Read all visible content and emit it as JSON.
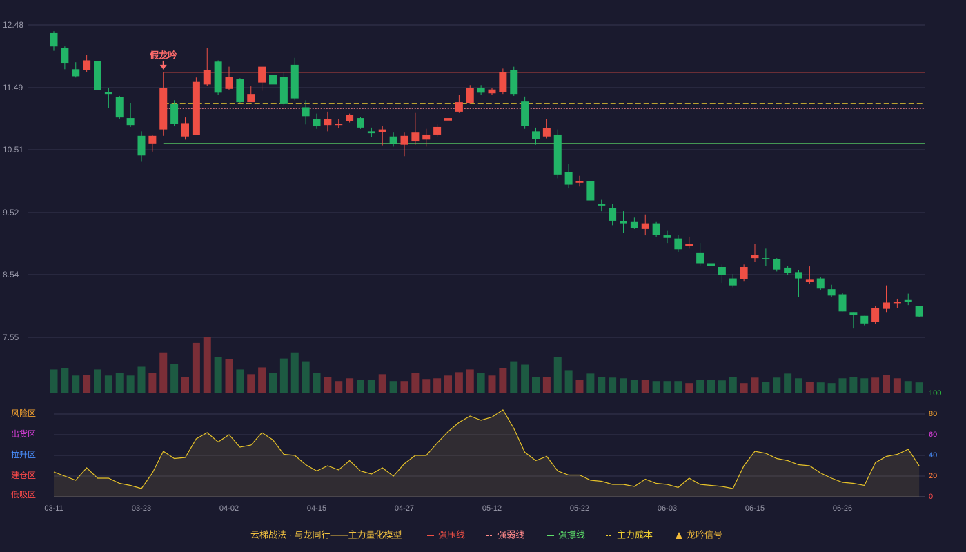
{
  "chart_data": [
    {
      "type": "candlestick",
      "open": [
        12.35,
        12.12,
        11.78,
        11.77,
        11.91,
        11.42,
        11.34,
        11.01,
        10.73,
        10.61,
        10.83,
        11.23,
        10.72,
        10.74,
        11.54,
        11.9,
        11.47,
        11.62,
        11.26,
        11.57,
        11.69,
        11.66,
        11.85,
        11.18,
        10.99,
        10.9,
        10.9,
        10.96,
        11.01,
        10.8,
        10.79,
        10.72,
        10.59,
        10.64,
        10.67,
        10.75,
        10.97,
        11.11,
        11.25,
        11.49,
        11.4,
        11.42,
        11.77,
        11.27,
        10.8,
        10.72,
        10.75,
        10.16,
        9.99,
        10.02,
        9.65,
        9.59,
        9.38,
        9.37,
        9.26,
        9.35,
        9.16,
        9.11,
        8.99,
        8.89,
        8.72,
        8.66,
        8.48,
        8.47,
        8.8,
        8.8,
        8.78,
        8.65,
        8.58,
        8.43,
        8.48,
        8.31,
        8.23,
        7.95,
        7.89,
        7.79,
        8.0,
        8.09,
        8.14,
        8.04
      ],
      "close": [
        12.14,
        11.87,
        11.67,
        11.92,
        11.45,
        11.39,
        11.02,
        10.9,
        10.42,
        10.73,
        11.48,
        10.92,
        10.93,
        11.58,
        11.77,
        11.41,
        11.66,
        11.26,
        11.39,
        11.82,
        11.54,
        11.23,
        11.32,
        11.04,
        10.88,
        11.0,
        10.92,
        11.06,
        10.86,
        10.77,
        10.83,
        10.61,
        10.73,
        10.78,
        10.75,
        10.87,
        11.01,
        11.26,
        11.48,
        11.41,
        11.46,
        11.74,
        11.39,
        10.89,
        10.68,
        10.85,
        10.12,
        9.96,
        10.02,
        9.71,
        9.63,
        9.39,
        9.35,
        9.28,
        9.35,
        9.17,
        9.12,
        8.94,
        9.02,
        8.72,
        8.68,
        8.54,
        8.37,
        8.66,
        8.85,
        8.78,
        8.62,
        8.57,
        8.48,
        8.46,
        8.32,
        8.21,
        7.96,
        7.9,
        7.77,
        8.01,
        8.1,
        8.11,
        8.11,
        7.88
      ],
      "low": [
        12.07,
        11.78,
        11.65,
        11.74,
        11.45,
        11.17,
        10.99,
        10.87,
        10.32,
        10.48,
        10.73,
        10.88,
        10.67,
        10.74,
        11.52,
        11.37,
        11.45,
        11.24,
        11.26,
        11.44,
        11.52,
        11.21,
        11.29,
        10.91,
        10.84,
        10.8,
        10.85,
        10.94,
        10.84,
        10.71,
        10.58,
        10.56,
        10.41,
        10.59,
        10.56,
        10.72,
        10.88,
        11.09,
        11.23,
        11.38,
        11.37,
        11.39,
        11.36,
        10.84,
        10.59,
        10.69,
        10.06,
        9.9,
        9.93,
        9.71,
        9.54,
        9.32,
        9.2,
        9.26,
        9.16,
        9.14,
        9.04,
        8.9,
        8.95,
        8.68,
        8.6,
        8.41,
        8.34,
        8.44,
        8.74,
        8.68,
        8.59,
        8.54,
        8.19,
        8.4,
        8.3,
        8.19,
        7.96,
        7.69,
        7.74,
        7.76,
        7.95,
        8.01,
        8.06,
        7.87
      ],
      "high": [
        12.38,
        12.14,
        11.89,
        12.01,
        11.91,
        11.48,
        11.36,
        11.24,
        10.8,
        10.75,
        11.73,
        11.29,
        11.02,
        11.65,
        12.12,
        11.92,
        11.82,
        11.64,
        11.51,
        11.82,
        11.76,
        11.74,
        11.96,
        11.29,
        11.08,
        11.11,
        11.0,
        11.08,
        11.03,
        10.86,
        10.88,
        10.78,
        10.78,
        11.09,
        10.84,
        10.91,
        11.1,
        11.37,
        11.53,
        11.53,
        11.49,
        11.79,
        11.82,
        11.35,
        10.86,
        10.99,
        10.83,
        10.29,
        10.1,
        10.02,
        9.72,
        9.66,
        9.54,
        9.44,
        9.49,
        9.37,
        9.23,
        9.17,
        9.14,
        9.04,
        8.87,
        8.7,
        8.55,
        8.7,
        9.02,
        8.95,
        8.8,
        8.68,
        8.61,
        8.67,
        8.5,
        8.38,
        8.25,
        7.95,
        7.89,
        8.04,
        8.37,
        8.16,
        8.24,
        8.04
      ],
      "up_color": "#ef4f45",
      "down_color": "#22b467",
      "ylim": [
        7.55,
        12.48
      ],
      "yticks": [
        12.48,
        11.49,
        10.51,
        9.52,
        8.54,
        7.55
      ],
      "grid": true,
      "signals": [
        null,
        null,
        null,
        null,
        null,
        null,
        null,
        null,
        null,
        null,
        "假龙吟",
        null,
        null,
        null,
        null,
        null,
        null,
        null,
        null,
        null,
        null,
        null,
        null,
        null,
        null,
        null,
        null,
        null,
        null,
        null,
        null,
        null,
        null,
        null,
        null,
        null,
        null,
        null,
        null,
        null,
        null,
        null,
        null,
        null,
        null,
        null,
        null,
        null,
        null,
        null,
        null,
        null,
        null,
        null,
        null,
        null,
        null,
        null,
        null,
        null,
        null,
        null,
        null,
        null,
        null,
        null,
        null,
        null,
        null,
        null,
        null,
        null,
        null,
        null,
        null,
        null,
        null,
        null,
        null,
        null
      ],
      "signal_name": "龙吟信号",
      "signal_color": "#f0b93a",
      "legend_title": "云梯战法 · 与龙同行——主力量化模型",
      "levels": [
        {
          "name": "强压线",
          "value": 11.73,
          "color": "#ef4f45",
          "style": "solid"
        },
        {
          "name": "强弱线",
          "value": 11.16,
          "color": "#ff8a8a",
          "style": "dotted"
        },
        {
          "name": "强撑线",
          "value": 10.61,
          "color": "#5ee06a",
          "style": "solid"
        },
        {
          "name": "主力成本",
          "value": 11.24,
          "color": "#f0d030",
          "style": "dashed"
        }
      ]
    },
    {
      "type": "bar",
      "values": [
        35,
        37,
        26,
        27,
        35,
        26,
        30,
        26,
        39,
        30,
        60,
        43,
        24,
        74,
        82,
        53,
        50,
        35,
        28,
        38,
        30,
        51,
        60,
        47,
        30,
        24,
        18,
        22,
        20,
        20,
        28,
        18,
        18,
        30,
        21,
        22,
        26,
        31,
        35,
        30,
        26,
        37,
        47,
        42,
        24,
        24,
        53,
        34,
        20,
        29,
        24,
        23,
        22,
        20,
        20,
        18,
        18,
        18,
        15,
        20,
        20,
        19,
        24,
        15,
        23,
        17,
        23,
        29,
        22,
        17,
        16,
        15,
        22,
        24,
        22,
        23,
        27,
        22,
        18,
        16
      ],
      "ylim": [
        0,
        82
      ],
      "up_color": "#7a2e37",
      "down_color": "#1d5a42"
    },
    {
      "type": "line",
      "categories": [
        "03-11",
        null,
        null,
        null,
        null,
        null,
        null,
        null,
        "03-23",
        null,
        null,
        null,
        null,
        null,
        null,
        null,
        "04-02",
        null,
        null,
        null,
        null,
        null,
        null,
        null,
        "04-15",
        null,
        null,
        null,
        null,
        null,
        null,
        null,
        "04-27",
        null,
        null,
        null,
        null,
        null,
        null,
        null,
        "05-12",
        null,
        null,
        null,
        null,
        null,
        null,
        null,
        "05-22",
        null,
        null,
        null,
        null,
        null,
        null,
        null,
        "06-03",
        null,
        null,
        null,
        null,
        null,
        null,
        null,
        "06-15",
        null,
        null,
        null,
        null,
        null,
        null,
        null,
        "06-26",
        null,
        null,
        null,
        null,
        null,
        null,
        null
      ],
      "values": [
        24,
        20,
        16,
        28,
        18,
        18,
        13,
        11,
        8,
        23,
        44,
        37,
        38,
        56,
        62,
        53,
        60,
        48,
        50,
        62,
        55,
        41,
        40,
        31,
        25,
        30,
        26,
        35,
        25,
        22,
        28,
        20,
        32,
        40,
        40,
        52,
        63,
        72,
        78,
        74,
        77,
        84,
        66,
        43,
        35,
        39,
        25,
        21,
        21,
        16,
        15,
        12,
        12,
        10,
        17,
        13,
        12,
        9,
        18,
        12,
        11,
        10,
        8,
        30,
        44,
        42,
        37,
        35,
        31,
        30,
        23,
        18,
        14,
        13,
        11,
        33,
        39,
        41,
        46,
        30
      ],
      "color": "#e6c229",
      "ylim": [
        0,
        100
      ],
      "yticks": [
        0,
        20,
        40,
        60,
        80,
        100
      ],
      "tick_colors": [
        "#ff4a4a",
        "#ff7a3a",
        "#4a90ff",
        "#e040e0",
        "#f0a030",
        "#2ecc40"
      ],
      "zones": [
        {
          "label": "风险区",
          "value": 80,
          "color": "#f0a030"
        },
        {
          "label": "出货区",
          "value": 60,
          "color": "#e040e0"
        },
        {
          "label": "拉升区",
          "value": 40,
          "color": "#4a90ff"
        },
        {
          "label": "建仓区",
          "value": 20,
          "color": "#ff4a4a"
        },
        {
          "label": "低吸区",
          "value": 0,
          "color": "#ff4a4a"
        }
      ]
    }
  ]
}
